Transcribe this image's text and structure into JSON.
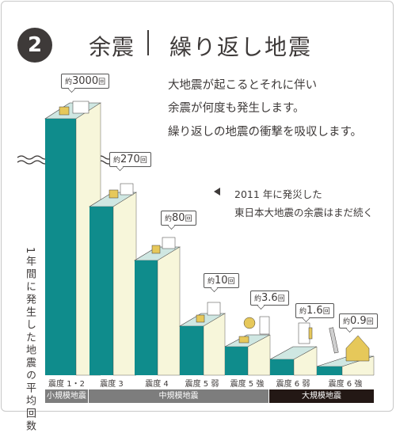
{
  "header": {
    "number": "2",
    "title_left": "余震",
    "title_right": "繰り返し地震"
  },
  "description": [
    "大地震が起こるとそれに伴い",
    "余震が何度も発生します。",
    "繰り返しの地震の衝撃を吸収します。"
  ],
  "note": [
    "2011 年に発災した",
    "東日本大地震の余震はまだ続く"
  ],
  "vertical_label": "1年間に発生した地震の平均回数",
  "bubbles": [
    {
      "prefix": "約",
      "value": "3000",
      "suffix": "回"
    },
    {
      "prefix": "約",
      "value": "270",
      "suffix": "回"
    },
    {
      "prefix": "約",
      "value": "80",
      "suffix": "回"
    },
    {
      "prefix": "約",
      "value": "10",
      "suffix": "回"
    },
    {
      "prefix": "約",
      "value": "3.6",
      "suffix": "回"
    },
    {
      "prefix": "約",
      "value": "1.6",
      "suffix": "回"
    },
    {
      "prefix": "約",
      "value": "0.9",
      "suffix": "回"
    }
  ],
  "intensity_labels": [
    "震度 1・2",
    "震度 3",
    "震度 4",
    "震度 5 弱",
    "震度 5 強",
    "震度 6 弱",
    "震度 6 強"
  ],
  "categories": {
    "small": "小規模地震",
    "mid": "中規模地震",
    "large": "大規模地震"
  },
  "colors": {
    "teal": "#0f8c8c",
    "cream": "#f7f6da",
    "top": "#cfe7e2",
    "dark": "#3e3a39",
    "cat_gray": "#7d7d7d",
    "cat_black": "#231815"
  }
}
